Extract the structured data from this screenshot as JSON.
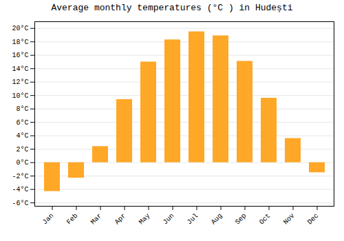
{
  "chart_data": {
    "type": "bar",
    "title": "Average monthly temperatures (°C ) in Hudești",
    "categories": [
      "Jan",
      "Feb",
      "Mar",
      "Apr",
      "May",
      "Jun",
      "Jul",
      "Aug",
      "Sep",
      "Oct",
      "Nov",
      "Dec"
    ],
    "values": [
      -4.3,
      -2.3,
      2.4,
      9.4,
      15.0,
      18.3,
      19.5,
      18.9,
      15.1,
      9.6,
      3.6,
      -1.5
    ],
    "color": "#FFA726",
    "ylim": [
      -6.5,
      21
    ],
    "yticks": [
      {
        "value": -6,
        "label": "-6°C"
      },
      {
        "value": -4,
        "label": "-4°C"
      },
      {
        "value": -2,
        "label": "-2°C"
      },
      {
        "value": 0,
        "label": "0°C"
      },
      {
        "value": 2,
        "label": "2°C"
      },
      {
        "value": 4,
        "label": "4°C"
      },
      {
        "value": 6,
        "label": "6°C"
      },
      {
        "value": 8,
        "label": "8°C"
      },
      {
        "value": 10,
        "label": "10°C"
      },
      {
        "value": 12,
        "label": "12°C"
      },
      {
        "value": 14,
        "label": "14°C"
      },
      {
        "value": 16,
        "label": "16°C"
      },
      {
        "value": 18,
        "label": "18°C"
      },
      {
        "value": 20,
        "label": "20°C"
      }
    ],
    "grid": true
  }
}
